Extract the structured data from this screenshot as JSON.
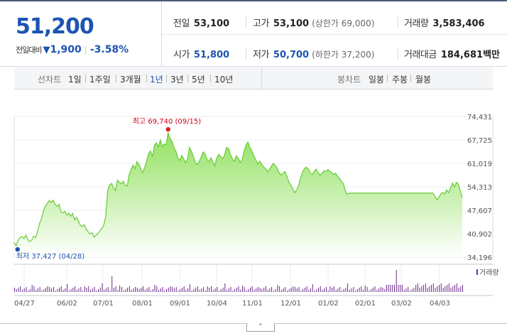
{
  "summary": {
    "current_price": "51,200",
    "change_label": "전일대비",
    "change_arrow": "▼",
    "change_amount": "1,900",
    "change_rate": "-3.58%",
    "prev_close_label": "전일",
    "prev_close": "53,100",
    "high_label": "고가",
    "high": "53,100",
    "upper_limit_label": "상한가",
    "upper_limit": "69,000",
    "volume_label": "거래량",
    "volume": "3,583,406",
    "open_label": "시가",
    "open": "51,800",
    "low_label": "저가",
    "low": "50,700",
    "lower_limit_label": "하한가",
    "lower_limit": "37,200",
    "trade_value_label": "거래대금",
    "trade_value": "184,681",
    "trade_value_unit": "백만"
  },
  "period_bar": {
    "line_chart_label": "선차트",
    "line_periods": [
      "1일",
      "1주일",
      "3개월",
      "1년",
      "3년",
      "5년",
      "10년"
    ],
    "active_period": "1년",
    "candle_chart_label": "봉차트",
    "candle_periods": [
      "일봉",
      "주봉",
      "월봉"
    ]
  },
  "chart_data": {
    "type": "area",
    "y_ticks": [
      "74,431",
      "67,725",
      "61,019",
      "54,313",
      "47,607",
      "40,902",
      "34,196"
    ],
    "ylim": [
      34196,
      74431
    ],
    "x_ticks": [
      "04/27",
      "06/02",
      "07/01",
      "08/01",
      "09/01",
      "10/04",
      "11/01",
      "12/01",
      "01/02",
      "02/01",
      "03/02",
      "04/03"
    ],
    "max_annotation": "최고 69,740 (09/15)",
    "max_value": 69740,
    "min_annotation": "최저 37,427 (04/28)",
    "min_value": 37427,
    "volume_legend": "거래량",
    "values": [
      38400,
      37427,
      39000,
      39800,
      40100,
      39500,
      40500,
      39200,
      38600,
      39100,
      40200,
      39800,
      41500,
      43800,
      45200,
      47500,
      48800,
      49600,
      50400,
      49800,
      50500,
      49300,
      48700,
      49300,
      47200,
      46900,
      47300,
      46200,
      46800,
      45900,
      46700,
      44800,
      45600,
      44500,
      43300,
      42900,
      43500,
      42200,
      41400,
      40800,
      41200,
      39900,
      40500,
      40900,
      41800,
      42400,
      43400,
      45800,
      53400,
      54800,
      55300,
      54100,
      53300,
      56200,
      55700,
      55200,
      55900,
      54800,
      54500,
      57800,
      59300,
      60500,
      59500,
      61500,
      60800,
      59400,
      58400,
      59900,
      61700,
      63800,
      64600,
      62900,
      66300,
      66900,
      65700,
      67700,
      65900,
      66600,
      66300,
      69740,
      68200,
      67300,
      65600,
      64500,
      62600,
      61900,
      63300,
      62300,
      61100,
      62500,
      65600,
      64400,
      62900,
      61300,
      60700,
      61600,
      62900,
      64300,
      63700,
      62100,
      61500,
      62600,
      61400,
      60300,
      62600,
      63600,
      62900,
      62400,
      63400,
      65600,
      65200,
      63600,
      62300,
      61600,
      63200,
      62500,
      61300,
      62100,
      64500,
      66300,
      67100,
      65600,
      64600,
      63200,
      62100,
      60800,
      61700,
      60900,
      60000,
      59600,
      58700,
      59300,
      60200,
      61000,
      60400,
      59700,
      58300,
      57700,
      58200,
      58700,
      57300,
      55700,
      54800,
      53700,
      52600,
      53400,
      54700,
      56800,
      58500,
      59600,
      59900,
      59400,
      58300,
      57800,
      58700,
      59400,
      58300,
      57600,
      58200,
      58900,
      58600,
      59300,
      58700,
      58400,
      57800,
      58200,
      57300,
      56700,
      55800,
      55200,
      53100,
      52200,
      52500,
      52500,
      52500,
      52500,
      52500,
      52500,
      52500,
      52500,
      52500,
      52500,
      52500,
      52500,
      52500,
      52500,
      52500,
      52500,
      52500,
      52500,
      52500,
      52500,
      52500,
      52500,
      52500,
      52500,
      52500,
      52500,
      52500,
      52500,
      52500,
      52500,
      52500,
      52500,
      52500,
      52500,
      52500,
      52500,
      52500,
      52500,
      52500,
      52500,
      52500,
      52500,
      52500,
      52500,
      51600,
      50600,
      51300,
      52300,
      52700,
      52200,
      53400,
      52600,
      54000,
      55400,
      54300,
      55600,
      55000,
      53100,
      51200
    ]
  },
  "colors": {
    "accent_blue": "#1c54b2",
    "down": "#1c54b2",
    "up": "#d0021b",
    "line": "#66cc33"
  }
}
